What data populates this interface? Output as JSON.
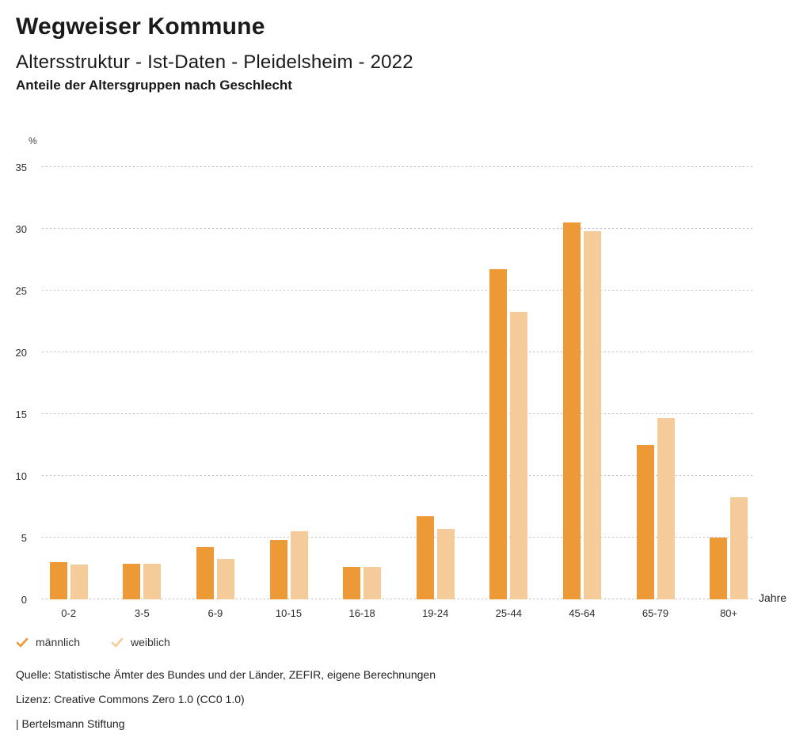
{
  "header": {
    "title": "Wegweiser Kommune",
    "subtitle": "Altersstruktur - Ist-Daten - Pleidelsheim - 2022",
    "chart_heading": "Anteile der Altersgruppen nach Geschlecht"
  },
  "chart_data": {
    "type": "bar",
    "title": "Anteile der Altersgruppen nach Geschlecht",
    "categories": [
      "0-2",
      "3-5",
      "6-9",
      "10-15",
      "16-18",
      "19-24",
      "25-44",
      "45-64",
      "65-79",
      "80+"
    ],
    "series": [
      {
        "name": "männlich",
        "color": "#ED9935",
        "values": [
          3.0,
          2.9,
          4.2,
          4.8,
          2.6,
          6.7,
          26.7,
          30.5,
          12.5,
          5.0
        ]
      },
      {
        "name": "weiblich",
        "color": "#F5CB9A",
        "values": [
          2.8,
          2.9,
          3.3,
          5.5,
          2.6,
          5.7,
          23.3,
          29.8,
          14.7,
          8.3
        ]
      }
    ],
    "ylabel": "%",
    "xlabel": "Jahre",
    "ylim": [
      0,
      35
    ],
    "yticks": [
      35,
      30,
      25,
      20,
      15,
      10,
      5,
      0
    ],
    "grid": "dotted horizontal",
    "gridline_color": "#bdbdbd",
    "legend_position": "bottom-left",
    "legend_icon": "check"
  },
  "footer": {
    "source": "Quelle: Statistische Ämter des Bundes und der Länder, ZEFIR, eigene Berechnungen",
    "license": "Lizenz: Creative Commons Zero 1.0 (CC0 1.0)",
    "attribution": "| Bertelsmann Stiftung"
  }
}
